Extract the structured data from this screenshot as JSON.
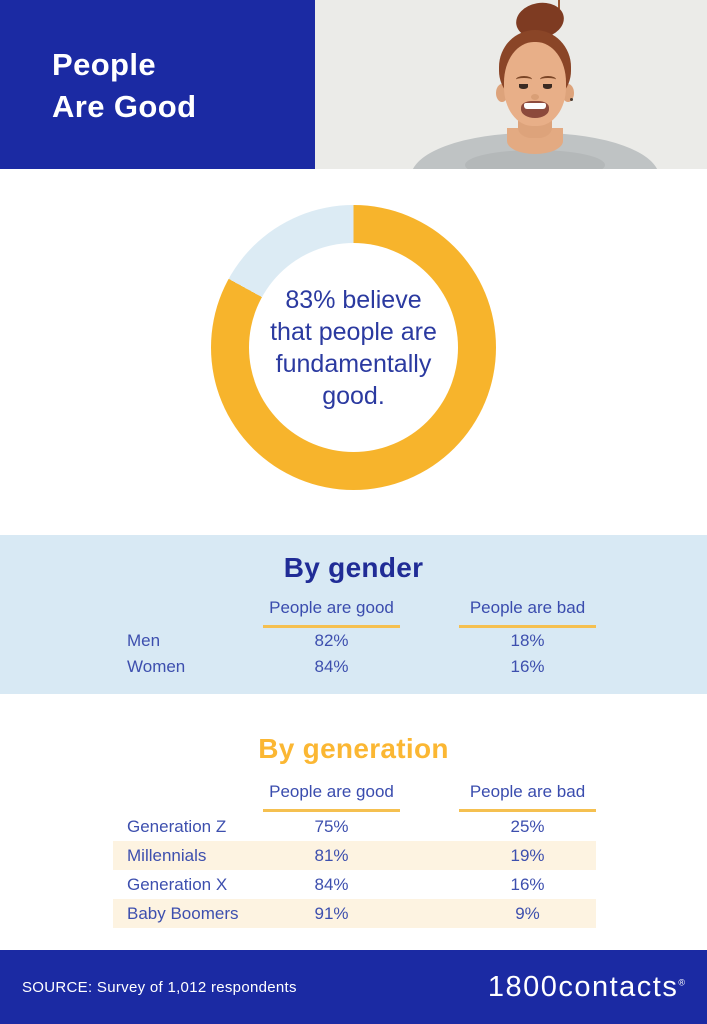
{
  "header": {
    "title_line1": "People",
    "title_line2": "Are Good",
    "photo_description": "smiling woman with red hair bun"
  },
  "donut": {
    "center_lines": [
      "83% believe",
      "that people are",
      "fundamentally",
      "good."
    ]
  },
  "chart_data": [
    {
      "type": "pie",
      "donut": true,
      "title": "83% believe that people are fundamentally good.",
      "labels": [
        "People are good",
        "People are bad"
      ],
      "values": [
        83,
        17
      ],
      "colors": [
        "#f7b42c",
        "#dcebf4"
      ],
      "start_angle_deg": 0,
      "direction": "clockwise"
    },
    {
      "type": "table",
      "title": "By gender",
      "columns": [
        "People are good",
        "People are bad"
      ],
      "rows": [
        [
          "Men",
          "82%",
          "18%"
        ],
        [
          "Women",
          "84%",
          "16%"
        ]
      ]
    },
    {
      "type": "table",
      "title": "By generation",
      "columns": [
        "People are good",
        "People are bad"
      ],
      "rows": [
        [
          "Generation Z",
          "75%",
          "25%"
        ],
        [
          "Millennials",
          "81%",
          "19%"
        ],
        [
          "Generation X",
          "84%",
          "16%"
        ],
        [
          "Baby Boomers",
          "91%",
          "9%"
        ]
      ]
    }
  ],
  "gender_table": {
    "title": "By gender",
    "col_good": "People are good",
    "col_bad": "People are bad",
    "rows": [
      {
        "label": "Men",
        "good": "82%",
        "bad": "18%"
      },
      {
        "label": "Women",
        "good": "84%",
        "bad": "16%"
      }
    ]
  },
  "generation_table": {
    "title": "By generation",
    "col_good": "People are good",
    "col_bad": "People are bad",
    "rows": [
      {
        "label": "Generation Z",
        "good": "75%",
        "bad": "25%"
      },
      {
        "label": "Millennials",
        "good": "81%",
        "bad": "19%"
      },
      {
        "label": "Generation X",
        "good": "84%",
        "bad": "16%"
      },
      {
        "label": "Baby Boomers",
        "good": "91%",
        "bad": "9%"
      }
    ]
  },
  "footer": {
    "source": "SOURCE: Survey of 1,012 respondents",
    "brand": "1800contacts",
    "registered_mark": "®"
  },
  "colors": {
    "brand_blue": "#1b2aa3",
    "title_blue": "#202c96",
    "table_text_blue": "#3d4fae",
    "brand_yellow": "#f7b42c",
    "underline_yellow": "#f5c050",
    "light_blue_bg": "#d8e9f4",
    "pale_blue_segment": "#dcebf4",
    "cream_stripe": "#fdf3e1",
    "photo_bg": "#ebebe8"
  }
}
